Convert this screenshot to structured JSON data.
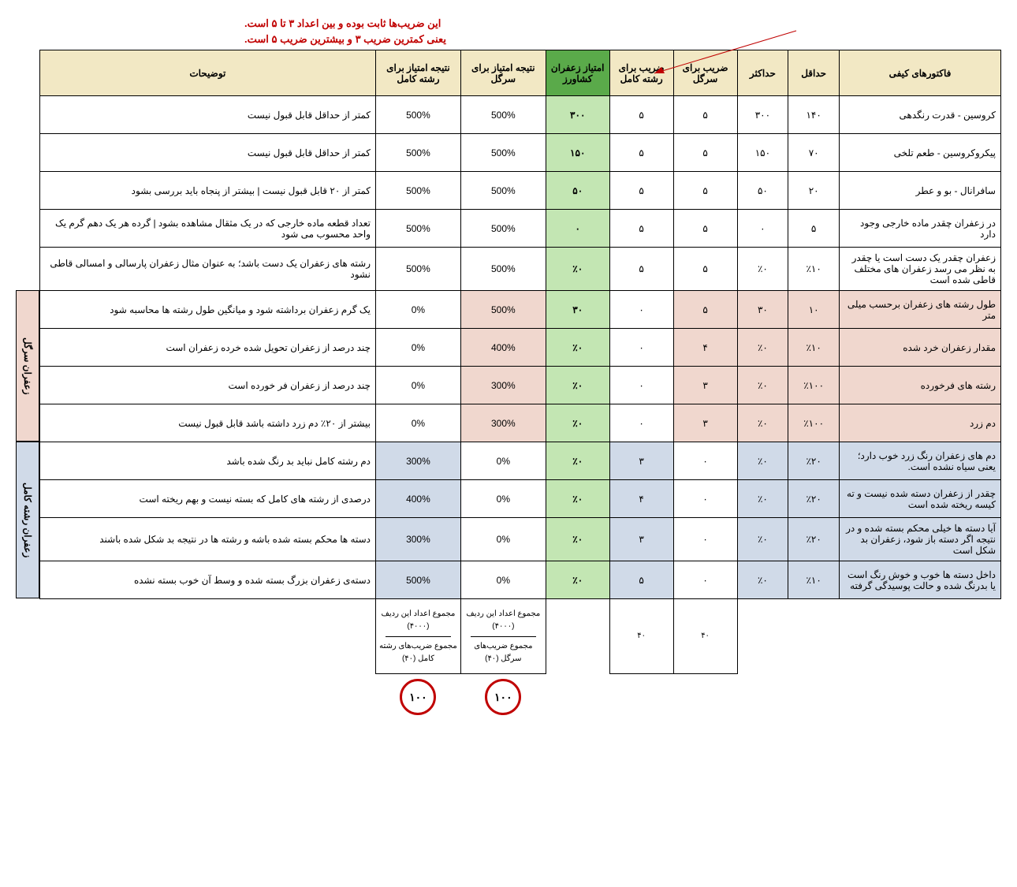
{
  "note": {
    "line1": "این ضریب‌ها ثابت بوده و بین اعداد ۳ تا ۵ است.",
    "line2": "یعنی کمترین ضریب ۳ و بیشترین ضریب ۵ است."
  },
  "headers": {
    "factor": "فاکتورهای کیفی",
    "min": "حداقل",
    "max": "حداکثر",
    "coef_sargol": "ضریب برای سرگل",
    "coef_full": "ضریب برای رشته کامل",
    "saffron_score": "امتیاز زعفران کشاورز",
    "result_sargol": "نتیجه امتیاز برای سرگل",
    "result_full": "نتیجه امتیاز برای رشته کامل",
    "desc": "توضیحات"
  },
  "side": {
    "sargol": "زعفران سرگل",
    "full": "زعفران رشته کامل"
  },
  "rows": [
    {
      "factor": "کروسین - قدرت رنگدهی",
      "min": "۱۴۰",
      "max": "۳۰۰",
      "c1": "۵",
      "c2": "۵",
      "score": "۳۰۰",
      "r1": "500%",
      "r2": "500%",
      "desc": "کمتر از حداقل قابل قبول نیست",
      "group": "none"
    },
    {
      "factor": "پیکروکروسین - طعم تلخی",
      "min": "۷۰",
      "max": "۱۵۰",
      "c1": "۵",
      "c2": "۵",
      "score": "۱۵۰",
      "r1": "500%",
      "r2": "500%",
      "desc": "کمتر از حداقل قابل قبول نیست",
      "group": "none"
    },
    {
      "factor": "سافرانال - بو و عطر",
      "min": "۲۰",
      "max": "۵۰",
      "c1": "۵",
      "c2": "۵",
      "score": "۵۰",
      "r1": "500%",
      "r2": "500%",
      "desc": "کمتر از ۲۰ قابل قبول نیست | بیشتر از پنجاه باید بررسی بشود",
      "group": "none"
    },
    {
      "factor": "در زعفران چقدر ماده خارجی وجود دارد",
      "min": "۵",
      "max": "۰",
      "c1": "۵",
      "c2": "۵",
      "score": "۰",
      "r1": "500%",
      "r2": "500%",
      "desc": "تعداد قطعه ماده خارجی که در یک مثقال مشاهده بشود | گرده هر یک دهم گرم یک واحد محسوب می شود",
      "group": "none"
    },
    {
      "factor": "زعفران چقدر یک دست است یا چقدر به نظر می رسد زعفران های مختلف قاطی شده است",
      "min": "٪۱۰",
      "max": "٪۰",
      "c1": "۵",
      "c2": "۵",
      "score": "٪۰",
      "r1": "500%",
      "r2": "500%",
      "desc": "رشته های زعفران یک دست باشد؛ به عنوان مثال زعفران پارسالی و امسالی قاطی نشود",
      "group": "none"
    },
    {
      "factor": "طول رشته های زعفران برحسب میلی متر",
      "min": "۱۰",
      "max": "۳۰",
      "c1": "۵",
      "c2": "۰",
      "score": "۳۰",
      "r1": "500%",
      "r2": "0%",
      "desc": "یک گرم زعفران برداشته شود و میانگین طول رشته ها محاسبه شود",
      "group": "sargol"
    },
    {
      "factor": "مقدار زعفران خرد شده",
      "min": "٪۱۰",
      "max": "٪۰",
      "c1": "۴",
      "c2": "۰",
      "score": "٪۰",
      "r1": "400%",
      "r2": "0%",
      "desc": "چند درصد از زعفران تحویل شده خرده زعفران است",
      "group": "sargol"
    },
    {
      "factor": "رشته های فرخورده",
      "min": "٪۱۰۰",
      "max": "٪۰",
      "c1": "۳",
      "c2": "۰",
      "score": "٪۰",
      "r1": "300%",
      "r2": "0%",
      "desc": "چند درصد از زعفران فر خورده است",
      "group": "sargol"
    },
    {
      "factor": "دم زرد",
      "min": "٪۱۰۰",
      "max": "٪۰",
      "c1": "۳",
      "c2": "۰",
      "score": "٪۰",
      "r1": "300%",
      "r2": "0%",
      "desc": "بیشتر از ۲۰٪ دم زرد داشته باشد قابل قبول نیست",
      "group": "sargol"
    },
    {
      "factor": "دم های زعفران رنگ زرد خوب دارد؛ یعنی سیاه نشده است.",
      "min": "٪۲۰",
      "max": "٪۰",
      "c1": "۰",
      "c2": "۳",
      "score": "٪۰",
      "r1": "0%",
      "r2": "300%",
      "desc": "دم رشته کامل نباید بد رنگ شده باشد",
      "group": "full"
    },
    {
      "factor": "چقدر از زعفران دسته شده نیست و ته کیسه ریخته شده است",
      "min": "٪۲۰",
      "max": "٪۰",
      "c1": "۰",
      "c2": "۴",
      "score": "٪۰",
      "r1": "0%",
      "r2": "400%",
      "desc": "درصدی از رشته های کامل که بسته نیست و بهم ریخته است",
      "group": "full"
    },
    {
      "factor": "آیا دسته ها خیلی محکم بسته شده و در نتیجه اگر دسته باز شود، زعفران بد شکل است",
      "min": "٪۲۰",
      "max": "٪۰",
      "c1": "۰",
      "c2": "۳",
      "score": "٪۰",
      "r1": "0%",
      "r2": "300%",
      "desc": "دسته ها محکم بسته شده باشه و رشته ها در نتیجه بد شکل شده باشند",
      "group": "full"
    },
    {
      "factor": "داخل دسته ها خوب و خوش رنگ است یا بدرنگ شده و حالت پوسیدگی گرفته",
      "min": "٪۱۰",
      "max": "٪۰",
      "c1": "۰",
      "c2": "۵",
      "score": "٪۰",
      "r1": "0%",
      "r2": "500%",
      "desc": "دسته‌ی زعفران بزرگ بسته شده و وسط آن خوب بسته نشده",
      "group": "full"
    }
  ],
  "sums": {
    "c1_total": "۴۰",
    "c2_total": "۴۰",
    "r1_top": "مجموع اعداد این ردیف (۴۰۰۰)",
    "r1_bot": "مجموع ضریب‌های سرگل (۴۰)",
    "r2_top": "مجموع اعداد این ردیف (۴۰۰۰)",
    "r2_bot": "مجموع ضریب‌های رشته کامل (۴۰)",
    "final1": "۱۰۰",
    "final2": "۱۰۰"
  },
  "colors": {
    "header_bg": "#f2e8c4",
    "green_header": "#5aaa4a",
    "green_cell": "#c3e6b3",
    "pink_cell": "#f0d7ce",
    "blue_cell": "#d0dae8",
    "note_red": "#c00000"
  }
}
